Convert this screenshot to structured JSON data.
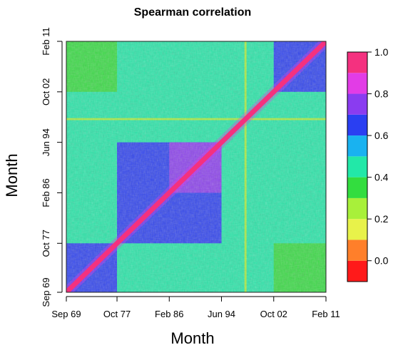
{
  "chart_data": {
    "type": "heatmap",
    "title": "Spearman correlation",
    "xlabel": "Month",
    "ylabel": "Month",
    "x_ticks": [
      "Sep 69",
      "Oct 77",
      "Feb 86",
      "Jun 94",
      "Oct 02",
      "Feb 11"
    ],
    "y_ticks": [
      "Sep 69",
      "Oct 77",
      "Feb 86",
      "Jun 94",
      "Oct 02",
      "Feb 11"
    ],
    "x_range": [
      "Sep 69",
      "Feb 11"
    ],
    "y_range": [
      "Sep 69",
      "Feb 11"
    ],
    "colorbar": {
      "min": -0.1,
      "max": 1.0,
      "ticks": [
        "1.0",
        "0.8",
        "0.6",
        "0.4",
        "0.2",
        "0.0"
      ],
      "tick_values": [
        1.0,
        0.8,
        0.6,
        0.4,
        0.2,
        0.0
      ],
      "colors": [
        {
          "lo": -0.1,
          "hi": 0.0,
          "color": "#ff1a1a"
        },
        {
          "lo": 0.0,
          "hi": 0.1,
          "color": "#ff7f2a"
        },
        {
          "lo": 0.1,
          "hi": 0.2,
          "color": "#e8f24a"
        },
        {
          "lo": 0.2,
          "hi": 0.3,
          "color": "#a8f03a"
        },
        {
          "lo": 0.3,
          "hi": 0.4,
          "color": "#33dd3f"
        },
        {
          "lo": 0.4,
          "hi": 0.5,
          "color": "#22e8a8"
        },
        {
          "lo": 0.5,
          "hi": 0.6,
          "color": "#19b2f0"
        },
        {
          "lo": 0.6,
          "hi": 0.7,
          "color": "#2a3ff2"
        },
        {
          "lo": 0.7,
          "hi": 0.8,
          "color": "#8a3cf0"
        },
        {
          "lo": 0.8,
          "hi": 0.9,
          "color": "#e23ce6"
        },
        {
          "lo": 0.9,
          "hi": 1.0,
          "color": "#f4317f"
        }
      ]
    },
    "blocks": [
      {
        "name": "background",
        "x": [
          "Sep 69",
          "Feb 11"
        ],
        "y": [
          "Sep 69",
          "Feb 11"
        ],
        "value": 0.42
      },
      {
        "name": "early-cluster",
        "x": [
          "Sep 69",
          "Oct 77"
        ],
        "y": [
          "Sep 69",
          "Oct 77"
        ],
        "value": 0.68
      },
      {
        "name": "middle-cluster",
        "x": [
          "Oct 77",
          "Jun 94"
        ],
        "y": [
          "Oct 77",
          "Jun 94"
        ],
        "value": 0.62
      },
      {
        "name": "middle-core",
        "x": [
          "Feb 86",
          "Jun 94"
        ],
        "y": [
          "Feb 86",
          "Jun 94"
        ],
        "value": 0.7
      },
      {
        "name": "late-cluster",
        "x": [
          "Oct 02",
          "Feb 11"
        ],
        "y": [
          "Oct 02",
          "Feb 11"
        ],
        "value": 0.66
      },
      {
        "name": "late-x-early",
        "x": [
          "Oct 02",
          "Feb 11"
        ],
        "y": [
          "Sep 69",
          "Oct 77"
        ],
        "value": 0.32
      },
      {
        "name": "early-x-late",
        "x": [
          "Sep 69",
          "Oct 77"
        ],
        "y": [
          "Oct 02",
          "Feb 11"
        ],
        "value": 0.32
      },
      {
        "name": "low-band-horizontal",
        "x": [
          "Sep 69",
          "Feb 11"
        ],
        "y": [
          "Feb 98",
          "Jun 98"
        ],
        "value": 0.24
      },
      {
        "name": "low-band-vertical",
        "x": [
          "Feb 98",
          "Jun 98"
        ],
        "y": [
          "Sep 69",
          "Feb 11"
        ],
        "value": 0.24
      }
    ],
    "diagonal_value": 1.0,
    "grid": false,
    "legend": "right"
  },
  "colors": {
    "background": "#ffffff",
    "axis": "#000000",
    "frame": "#222222"
  }
}
